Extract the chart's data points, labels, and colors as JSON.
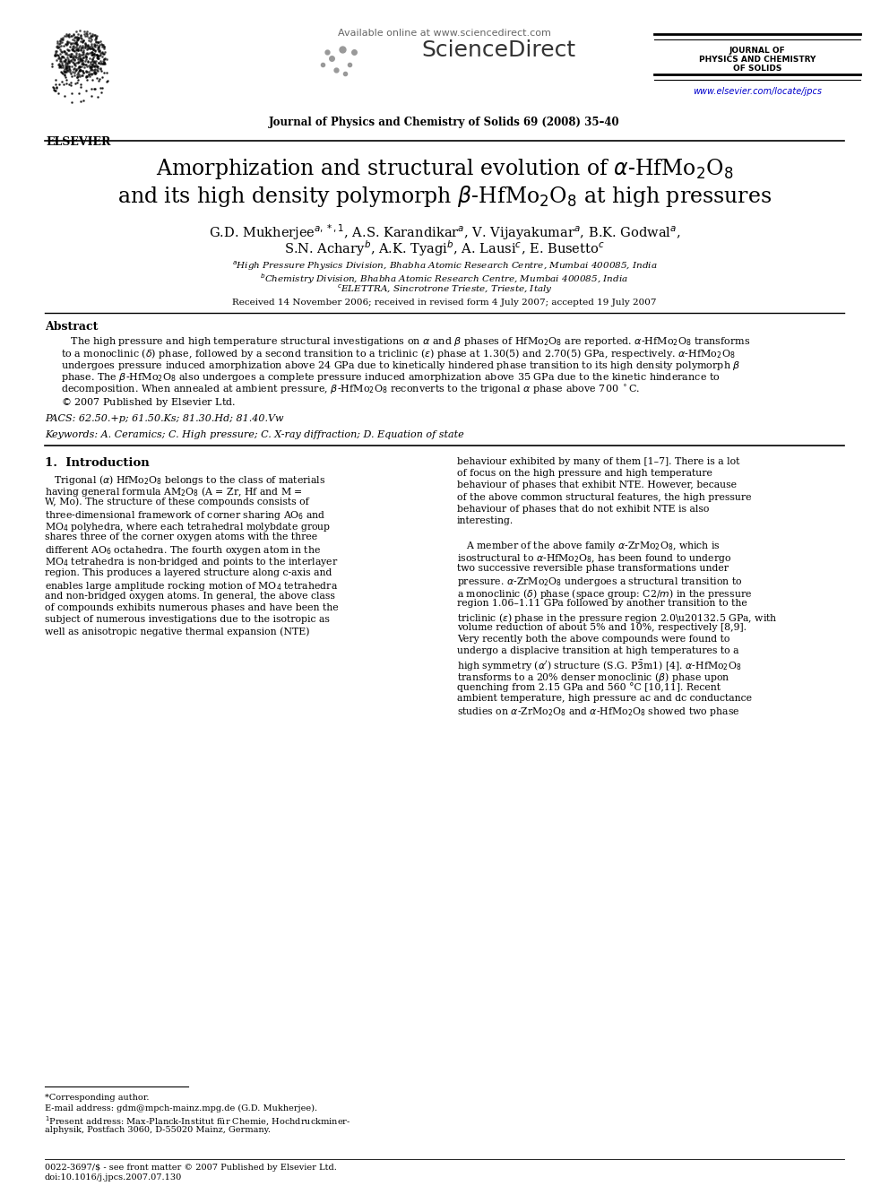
{
  "bg_color": "#ffffff",
  "available_online": "Available online at www.sciencedirect.com",
  "journal_name": "Journal of Physics and Chemistry of Solids 69 (2008) 35–40",
  "journal_right_line1": "JOURNAL OF",
  "journal_right_line2": "PHYSICS AND CHEMISTRY",
  "journal_right_line3": "OF SOLIDS",
  "elsevier_text": "ELSEVIER",
  "elsevier_url": "www.elsevier.com/locate/jpcs",
  "sciencedirect": "ScienceDirect",
  "received": "Received 14 November 2006; received in revised form 4 July 2007; accepted 19 July 2007",
  "abstract_title": "Abstract",
  "pacs": "PACS: 62.50.+p; 61.50.Ks; 81.30.Hd; 81.40.Vw",
  "keywords": "Keywords: A. Ceramics; C. High pressure; C. X-ray diffraction; D. Equation of state",
  "footnote_corresponding": "*Corresponding author.",
  "footnote_email": "E-mail address: gdm@mpch-mainz.mpg.de (G.D. Mukherjee).",
  "footnote_1a": "1Present address: Max-Planck-Institut für Chemie, Hochdruckminer-",
  "footnote_1b": "alphysik, Postfach 3060, D-55020 Mainz, Germany.",
  "footer_left": "0022-3697/$ - see front matter © 2007 Published by Elsevier Ltd.",
  "footer_doi": "doi:10.1016/j.jpcs.2007.07.130",
  "section1": "1.  Introduction"
}
